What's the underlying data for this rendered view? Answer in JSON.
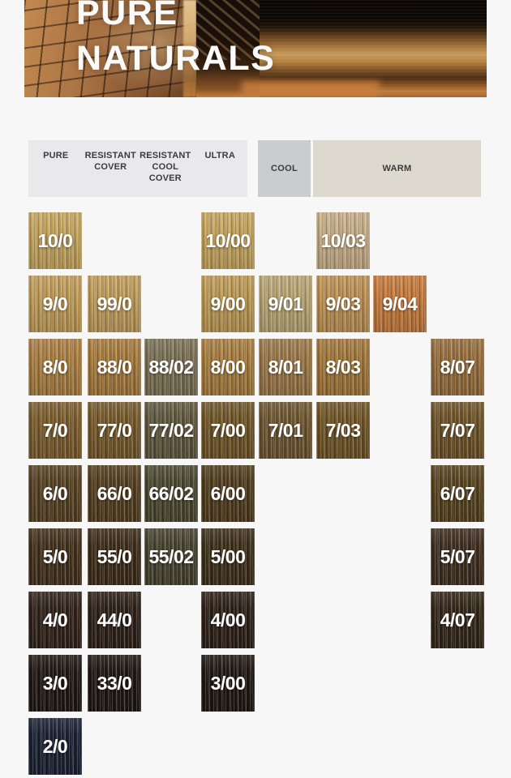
{
  "banner": {
    "title_line1": "PURE",
    "title_line2": "NATURALS"
  },
  "column_headers": {
    "group1": [
      "PURE",
      "RESISTANT\nCOVER",
      "RESISTANT\nCOOL\nCOVER",
      "ULTRA"
    ],
    "cool": "COOL",
    "warm": "WARM"
  },
  "colors": {
    "page_bg": "#f7f7f7",
    "header_group1_bg": "#e9e9eb",
    "header_cool_bg": "#cbccce",
    "header_warm_bg": "#ded9ce",
    "header_text": "#3b3b3b",
    "swatch_label": "#ffffff"
  },
  "families": [
    "PURE",
    "RESISTANT COVER",
    "RESISTANT COOL COVER",
    "ULTRA",
    "COOL",
    "WARM",
    "WARM",
    "WARM"
  ],
  "levels": [
    "10",
    "9",
    "8",
    "7",
    "6",
    "5",
    "4",
    "3",
    "2"
  ],
  "swatches": [
    {
      "code": "10/0",
      "col": 0,
      "row": 0,
      "color": "#c6a65f"
    },
    {
      "code": "10/00",
      "col": 3,
      "row": 0,
      "color": "#c5a55e"
    },
    {
      "code": "10/03",
      "col": 5,
      "row": 0,
      "color": "#c7ae88"
    },
    {
      "code": "9/0",
      "col": 0,
      "row": 1,
      "color": "#c19d59"
    },
    {
      "code": "99/0",
      "col": 1,
      "row": 1,
      "color": "#c09d5b"
    },
    {
      "code": "9/00",
      "col": 3,
      "row": 1,
      "color": "#bd9a55"
    },
    {
      "code": "9/01",
      "col": 4,
      "row": 1,
      "color": "#b9a674"
    },
    {
      "code": "9/03",
      "col": 5,
      "row": 1,
      "color": "#bd9154"
    },
    {
      "code": "9/04",
      "col": 6,
      "row": 1,
      "color": "#c57a3b"
    },
    {
      "code": "8/0",
      "col": 0,
      "row": 2,
      "color": "#aa7f42"
    },
    {
      "code": "88/0",
      "col": 1,
      "row": 2,
      "color": "#a77b3d"
    },
    {
      "code": "88/02",
      "col": 2,
      "row": 2,
      "color": "#7b7155"
    },
    {
      "code": "8/00",
      "col": 3,
      "row": 2,
      "color": "#a77d3f"
    },
    {
      "code": "8/01",
      "col": 4,
      "row": 2,
      "color": "#9b7848"
    },
    {
      "code": "8/03",
      "col": 5,
      "row": 2,
      "color": "#a2773b"
    },
    {
      "code": "8/07",
      "col": 7,
      "row": 2,
      "color": "#976f3e"
    },
    {
      "code": "7/0",
      "col": 0,
      "row": 3,
      "color": "#7c5d2e"
    },
    {
      "code": "77/0",
      "col": 1,
      "row": 3,
      "color": "#765a2b"
    },
    {
      "code": "77/02",
      "col": 2,
      "row": 3,
      "color": "#60583e"
    },
    {
      "code": "7/00",
      "col": 3,
      "row": 3,
      "color": "#705628"
    },
    {
      "code": "7/01",
      "col": 4,
      "row": 3,
      "color": "#6e5631"
    },
    {
      "code": "7/03",
      "col": 5,
      "row": 3,
      "color": "#705527"
    },
    {
      "code": "7/07",
      "col": 7,
      "row": 3,
      "color": "#6f5429"
    },
    {
      "code": "6/0",
      "col": 0,
      "row": 4,
      "color": "#574224"
    },
    {
      "code": "66/0",
      "col": 1,
      "row": 4,
      "color": "#543f1f"
    },
    {
      "code": "66/02",
      "col": 2,
      "row": 4,
      "color": "#4c4830"
    },
    {
      "code": "6/00",
      "col": 3,
      "row": 4,
      "color": "#503d1e"
    },
    {
      "code": "6/07",
      "col": 7,
      "row": 4,
      "color": "#58441f"
    },
    {
      "code": "5/0",
      "col": 0,
      "row": 5,
      "color": "#43311c"
    },
    {
      "code": "55/0",
      "col": 1,
      "row": 5,
      "color": "#3e2d19"
    },
    {
      "code": "55/02",
      "col": 2,
      "row": 5,
      "color": "#46432f"
    },
    {
      "code": "5/00",
      "col": 3,
      "row": 5,
      "color": "#3e301a"
    },
    {
      "code": "5/07",
      "col": 7,
      "row": 5,
      "color": "#3f2f20"
    },
    {
      "code": "4/0",
      "col": 0,
      "row": 6,
      "color": "#31231a"
    },
    {
      "code": "44/0",
      "col": 1,
      "row": 6,
      "color": "#2e2118"
    },
    {
      "code": "4/00",
      "col": 3,
      "row": 6,
      "color": "#2e2117"
    },
    {
      "code": "4/07",
      "col": 7,
      "row": 6,
      "color": "#342719"
    },
    {
      "code": "3/0",
      "col": 0,
      "row": 7,
      "color": "#201813"
    },
    {
      "code": "33/0",
      "col": 1,
      "row": 7,
      "color": "#1f1713"
    },
    {
      "code": "3/00",
      "col": 3,
      "row": 7,
      "color": "#201812"
    },
    {
      "code": "2/0",
      "col": 0,
      "row": 8,
      "color": "#1c2233"
    }
  ]
}
